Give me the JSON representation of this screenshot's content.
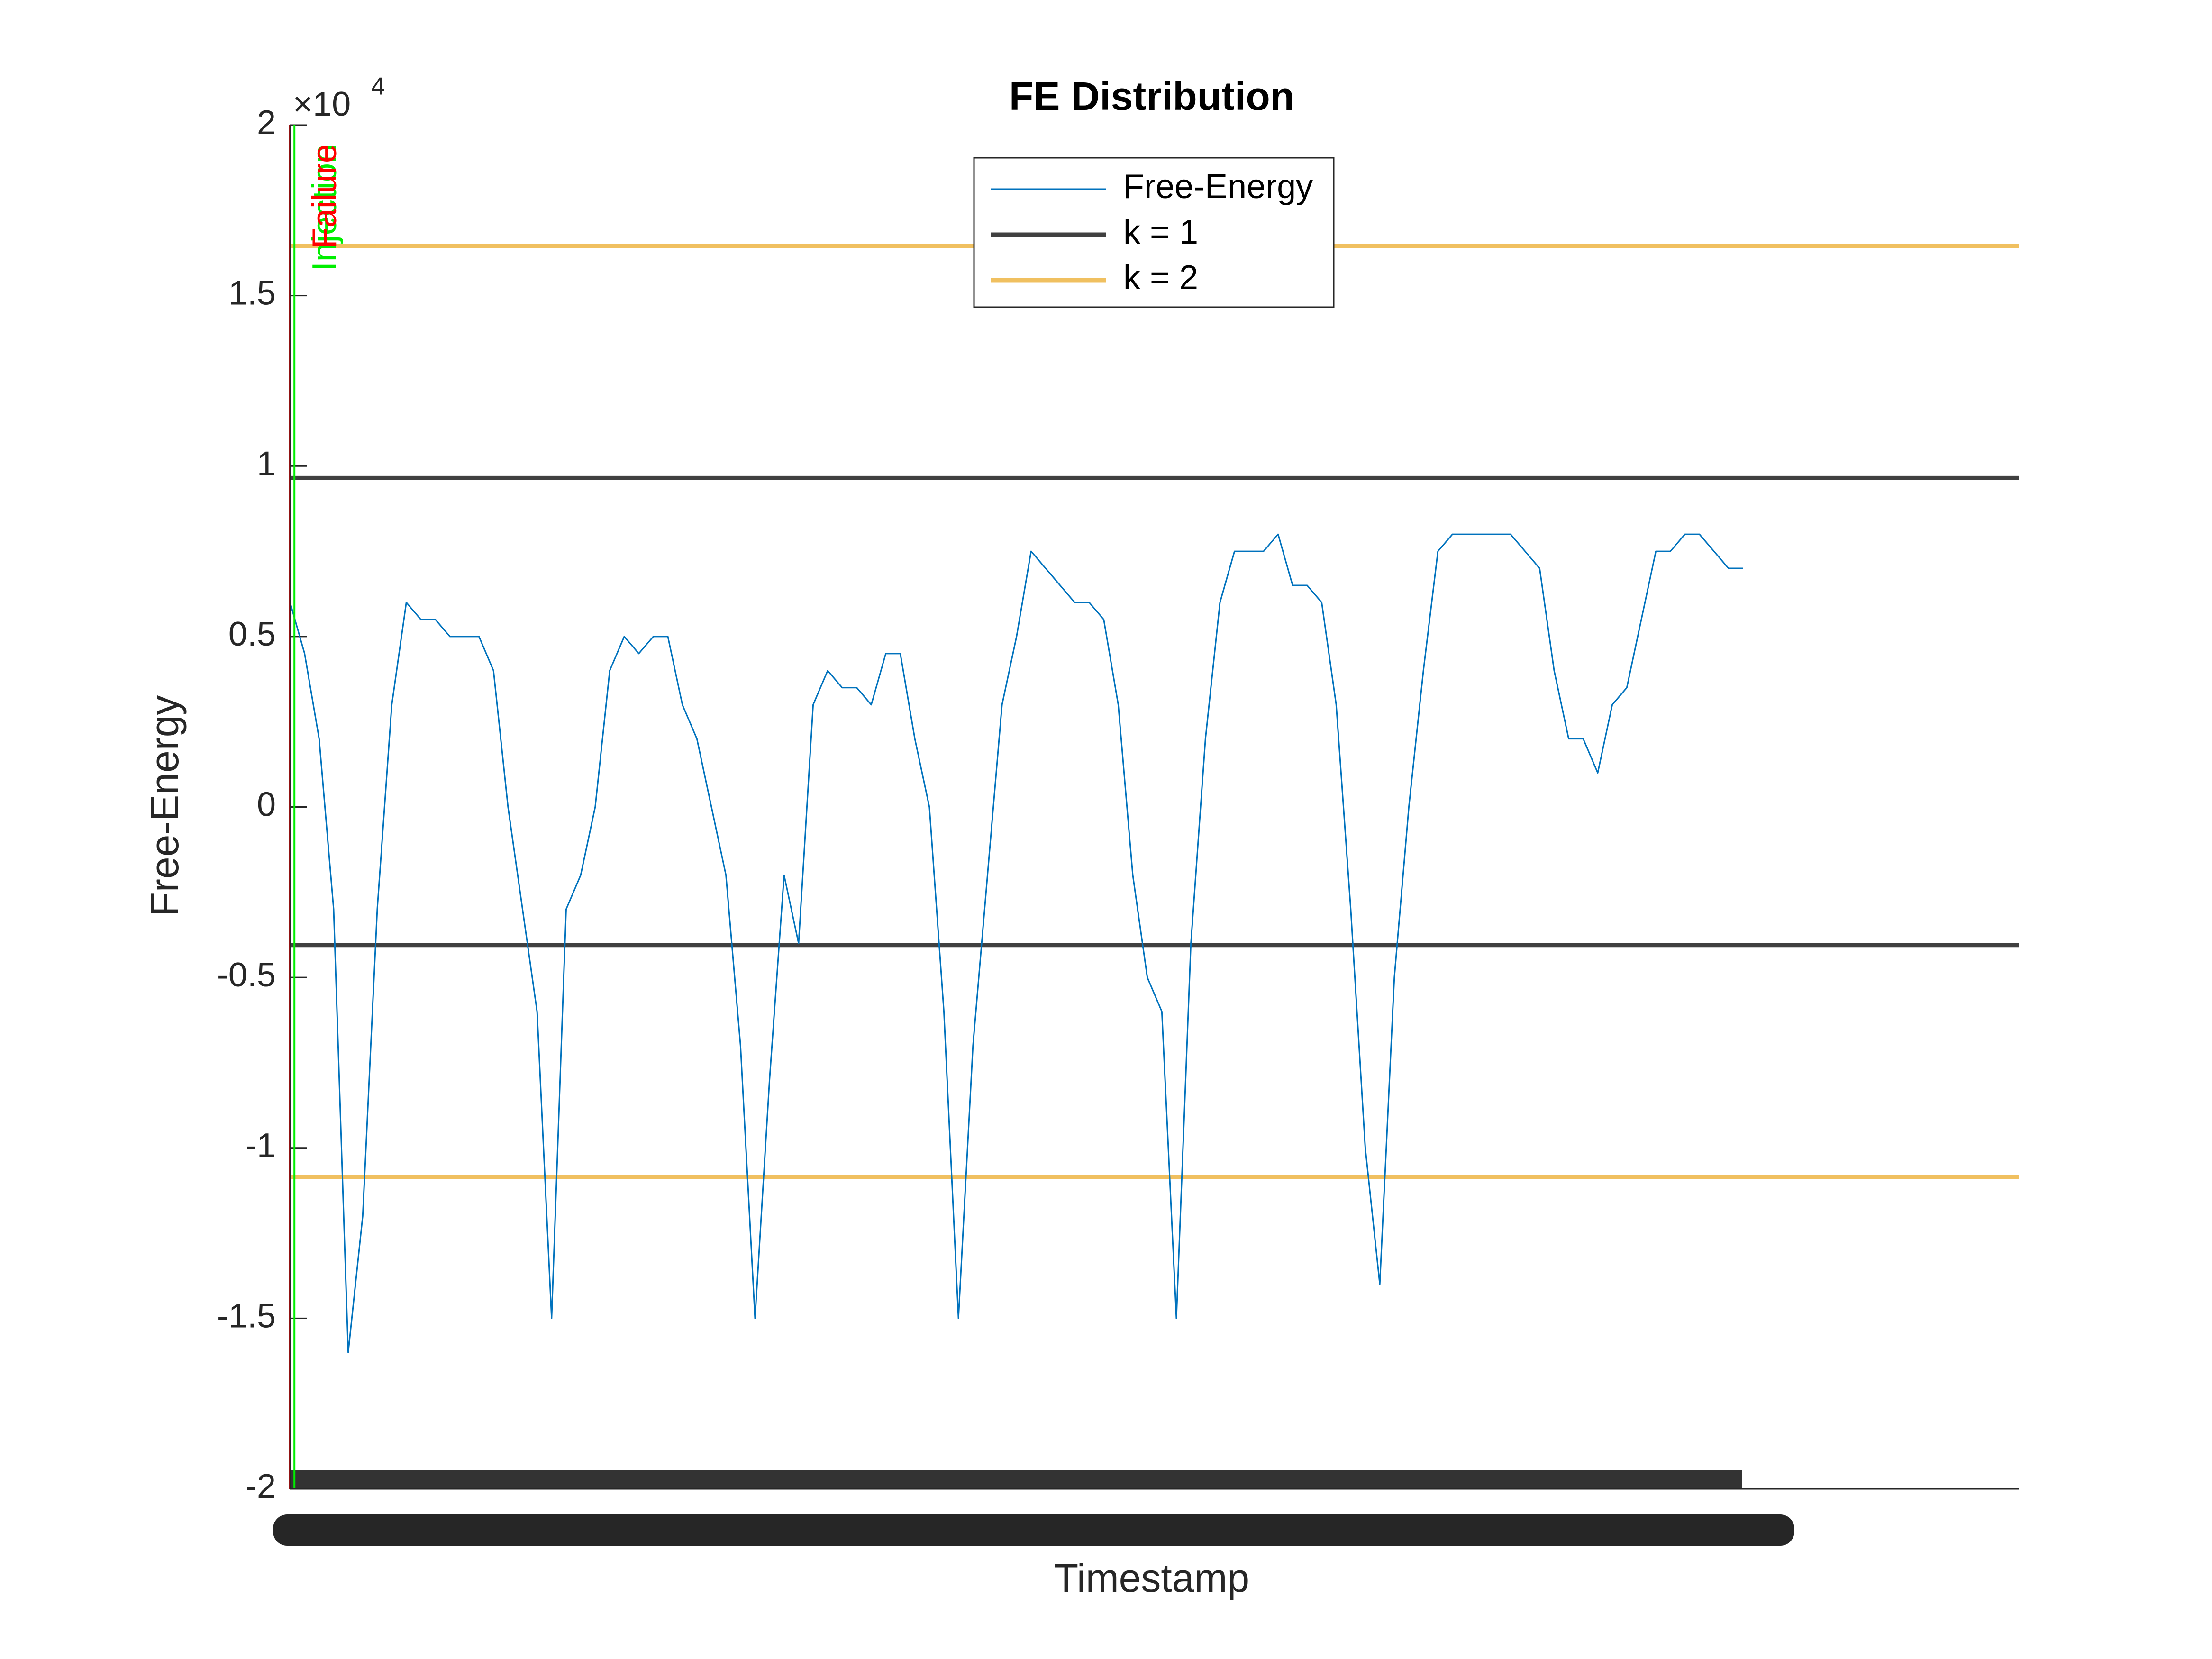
{
  "chart_data": {
    "type": "line",
    "title": "FE Distribution",
    "xlabel": "Timestamp",
    "ylabel": "Free-Energy",
    "y_exponent_base": "×10",
    "y_exponent_power": "4",
    "x": [
      0,
      1,
      2,
      3,
      4,
      5,
      6,
      7,
      8,
      9,
      10,
      11,
      12,
      13,
      14,
      15,
      16,
      17,
      18,
      19,
      20,
      21,
      22,
      23,
      24,
      25,
      26,
      27,
      28,
      29,
      30,
      31,
      32,
      33,
      34,
      35,
      36,
      37,
      38,
      39,
      40,
      41,
      42,
      43,
      44,
      45,
      46,
      47,
      48,
      49,
      50,
      51,
      52,
      53,
      54,
      55,
      56,
      57,
      58,
      59,
      60,
      61,
      62,
      63,
      64,
      65,
      66,
      67,
      68,
      69,
      70,
      71,
      72,
      73,
      74,
      75,
      76,
      77,
      78,
      79,
      80,
      81,
      82,
      83,
      84,
      85,
      86,
      87,
      88,
      89,
      90,
      91,
      92,
      93,
      94,
      95,
      96,
      97,
      98,
      99,
      100
    ],
    "series": [
      {
        "name": "Free-Energy",
        "color": "#0072bd",
        "values": [
          0.6,
          0.45,
          0.2,
          -0.3,
          -1.6,
          -1.2,
          -0.3,
          0.3,
          0.6,
          0.55,
          0.55,
          0.5,
          0.5,
          0.5,
          0.4,
          0.0,
          -0.3,
          -0.6,
          -1.5,
          -0.3,
          -0.2,
          0.0,
          0.4,
          0.5,
          0.45,
          0.5,
          0.5,
          0.3,
          0.2,
          0.0,
          -0.2,
          -0.7,
          -1.5,
          -0.8,
          -0.2,
          -0.4,
          0.3,
          0.4,
          0.35,
          0.35,
          0.3,
          0.45,
          0.45,
          0.2,
          0.0,
          -0.6,
          -1.5,
          -0.7,
          -0.2,
          0.3,
          0.5,
          0.75,
          0.7,
          0.65,
          0.6,
          0.6,
          0.55,
          0.3,
          -0.2,
          -0.5,
          -0.6,
          -1.5,
          -0.4,
          0.2,
          0.6,
          0.75,
          0.75,
          0.75,
          0.8,
          0.65,
          0.65,
          0.6,
          0.3,
          -0.3,
          -1.0,
          -1.4,
          -0.5,
          0.0,
          0.4,
          0.75,
          0.8,
          0.8,
          0.8,
          0.8,
          0.8,
          0.75,
          0.7,
          0.4,
          0.2,
          0.2,
          0.1,
          0.3,
          0.35,
          0.55,
          0.75,
          0.75,
          0.8,
          0.8,
          0.75,
          0.7,
          0.7
        ]
      }
    ],
    "reference_lines": [
      {
        "name": "k = 1",
        "color": "#404040",
        "values": [
          0.965,
          -0.405
        ]
      },
      {
        "name": "k = 2",
        "color": "#f0c060",
        "values": [
          1.645,
          -1.085
        ]
      }
    ],
    "events": [
      {
        "label": "Injection",
        "x": 0.3,
        "color": "#00ee00"
      },
      {
        "label": "Failure",
        "x": 0,
        "color": "#ff0000"
      }
    ],
    "xlim": [
      0,
      119
    ],
    "ylim": [
      -2,
      2
    ],
    "yticks": [
      -2,
      -1.5,
      -1,
      -0.5,
      0,
      0.5,
      1,
      1.5,
      2
    ],
    "legend": "top"
  }
}
